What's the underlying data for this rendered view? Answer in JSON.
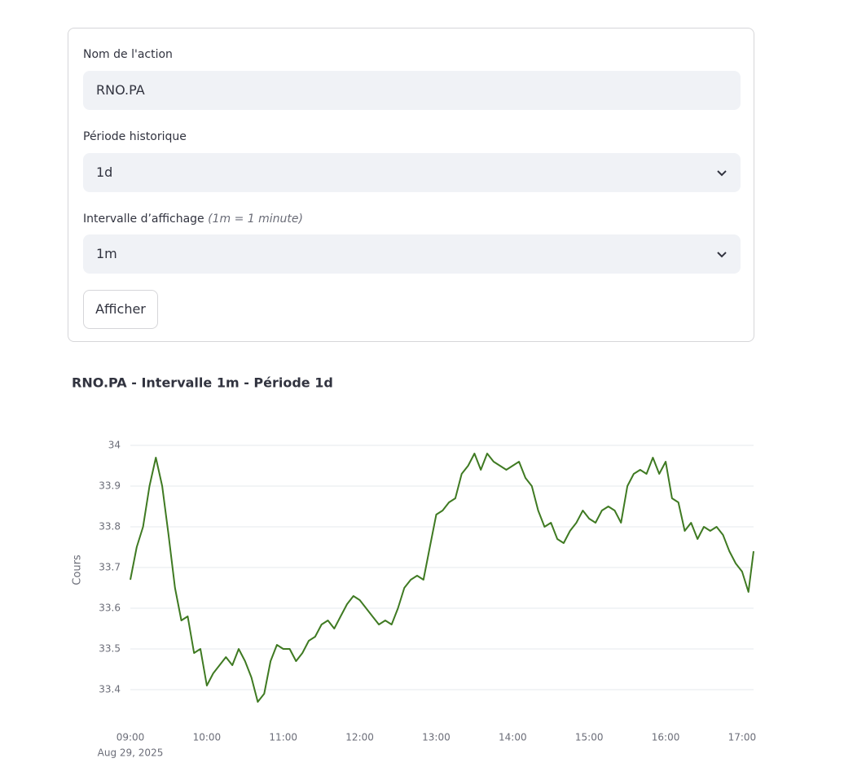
{
  "form": {
    "fields": [
      {
        "label": "Nom de l'action",
        "value": "RNO.PA"
      },
      {
        "label": "Période historique",
        "value": "1d"
      },
      {
        "label": "Intervalle d’affichage",
        "hint": "(1m = 1 minute)",
        "value": "1m"
      }
    ],
    "button": "Afficher"
  },
  "chart_data": {
    "type": "line",
    "title": "RNO.PA - Intervalle 1m - Période 1d",
    "y_label": "Cours",
    "date_label": "Aug 29, 2025",
    "color": "#3f7a22",
    "grid": true,
    "x": [
      "09:00",
      "09:05",
      "09:10",
      "09:15",
      "09:20",
      "09:25",
      "09:30",
      "09:35",
      "09:40",
      "09:45",
      "09:50",
      "09:55",
      "10:00",
      "10:05",
      "10:10",
      "10:15",
      "10:20",
      "10:25",
      "10:30",
      "10:35",
      "10:40",
      "10:45",
      "10:50",
      "10:55",
      "11:00",
      "11:05",
      "11:10",
      "11:15",
      "11:20",
      "11:25",
      "11:30",
      "11:35",
      "11:40",
      "11:45",
      "11:50",
      "11:55",
      "12:00",
      "12:05",
      "12:10",
      "12:15",
      "12:20",
      "12:25",
      "12:30",
      "12:35",
      "12:40",
      "12:45",
      "12:50",
      "12:55",
      "13:00",
      "13:05",
      "13:10",
      "13:15",
      "13:20",
      "13:25",
      "13:30",
      "13:35",
      "13:40",
      "13:45",
      "13:50",
      "13:55",
      "14:00",
      "14:05",
      "14:10",
      "14:15",
      "14:20",
      "14:25",
      "14:30",
      "14:35",
      "14:40",
      "14:45",
      "14:50",
      "14:55",
      "15:00",
      "15:05",
      "15:10",
      "15:15",
      "15:20",
      "15:25",
      "15:30",
      "15:35",
      "15:40",
      "15:45",
      "15:50",
      "15:55",
      "16:00",
      "16:05",
      "16:10",
      "16:15",
      "16:20",
      "16:25",
      "16:30",
      "16:35",
      "16:40",
      "16:45",
      "16:50",
      "16:55",
      "17:00",
      "17:05",
      "17:09"
    ],
    "values": [
      33.67,
      33.75,
      33.8,
      33.9,
      33.97,
      33.9,
      33.78,
      33.65,
      33.57,
      33.58,
      33.49,
      33.5,
      33.41,
      33.44,
      33.46,
      33.48,
      33.46,
      33.5,
      33.47,
      33.43,
      33.37,
      33.39,
      33.47,
      33.51,
      33.5,
      33.5,
      33.47,
      33.49,
      33.52,
      33.53,
      33.56,
      33.57,
      33.55,
      33.58,
      33.61,
      33.63,
      33.62,
      33.6,
      33.58,
      33.56,
      33.57,
      33.56,
      33.6,
      33.65,
      33.67,
      33.68,
      33.67,
      33.75,
      33.83,
      33.84,
      33.86,
      33.87,
      33.93,
      33.95,
      33.98,
      33.94,
      33.98,
      33.96,
      33.95,
      33.94,
      33.95,
      33.96,
      33.92,
      33.9,
      33.84,
      33.8,
      33.81,
      33.77,
      33.76,
      33.79,
      33.81,
      33.84,
      33.82,
      33.81,
      33.84,
      33.85,
      33.84,
      33.81,
      33.9,
      33.93,
      33.94,
      33.93,
      33.97,
      33.93,
      33.96,
      33.87,
      33.86,
      33.79,
      33.81,
      33.77,
      33.8,
      33.79,
      33.8,
      33.78,
      33.74,
      33.71,
      33.69,
      33.64,
      33.74
    ],
    "xlim": [
      "09:00",
      "17:09"
    ],
    "xticks": [
      "09:00",
      "10:00",
      "11:00",
      "12:00",
      "13:00",
      "14:00",
      "15:00",
      "16:00",
      "17:00"
    ],
    "ylim": [
      33.32,
      34.08
    ],
    "yticks": [
      33.4,
      33.5,
      33.6,
      33.7,
      33.8,
      33.9,
      34
    ]
  }
}
